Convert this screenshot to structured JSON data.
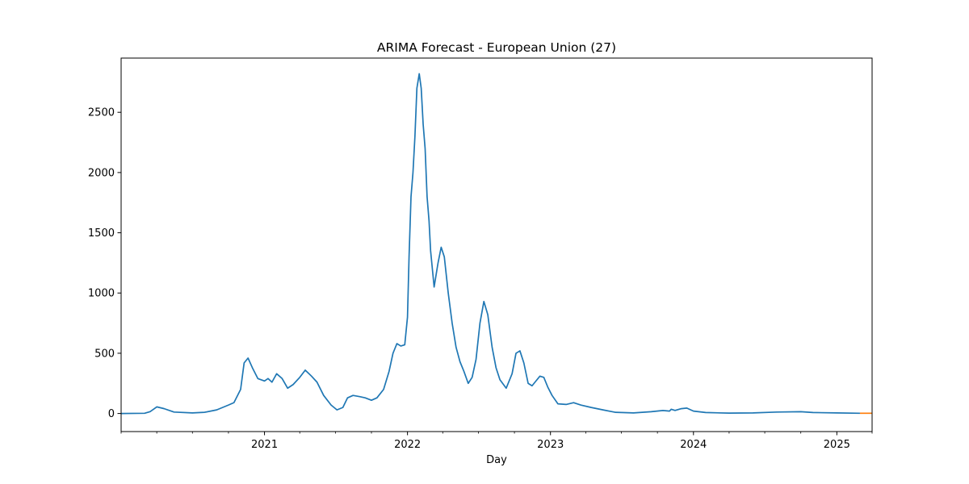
{
  "chart_data": {
    "type": "line",
    "title": "ARIMA Forecast - European Union (27)",
    "xlabel": "Day",
    "ylabel": "",
    "xlim": [
      "2020-01-01",
      "2025-04-01"
    ],
    "ylim": [
      -150,
      2950
    ],
    "grid": false,
    "legend": "none",
    "x_ticks": [
      {
        "date": "2021-01-01",
        "label": "2021"
      },
      {
        "date": "2022-01-01",
        "label": "2022"
      },
      {
        "date": "2023-01-01",
        "label": "2023"
      },
      {
        "date": "2024-01-01",
        "label": "2024"
      },
      {
        "date": "2025-01-01",
        "label": "2025"
      }
    ],
    "y_ticks": [
      {
        "value": 0,
        "label": "0"
      },
      {
        "value": 500,
        "label": "500"
      },
      {
        "value": 1000,
        "label": "1000"
      },
      {
        "value": 1500,
        "label": "1500"
      },
      {
        "value": 2000,
        "label": "2000"
      },
      {
        "value": 2500,
        "label": "2500"
      }
    ],
    "series": [
      {
        "color": "#1f77b4",
        "points": [
          [
            "2020-01-01",
            0
          ],
          [
            "2020-03-01",
            2
          ],
          [
            "2020-03-15",
            15
          ],
          [
            "2020-04-01",
            55
          ],
          [
            "2020-04-20",
            40
          ],
          [
            "2020-05-15",
            12
          ],
          [
            "2020-07-01",
            5
          ],
          [
            "2020-08-01",
            10
          ],
          [
            "2020-09-01",
            30
          ],
          [
            "2020-10-01",
            70
          ],
          [
            "2020-10-15",
            90
          ],
          [
            "2020-11-01",
            200
          ],
          [
            "2020-11-10",
            420
          ],
          [
            "2020-11-20",
            460
          ],
          [
            "2020-12-01",
            380
          ],
          [
            "2020-12-15",
            290
          ],
          [
            "2021-01-01",
            270
          ],
          [
            "2021-01-10",
            290
          ],
          [
            "2021-01-20",
            260
          ],
          [
            "2021-02-01",
            330
          ],
          [
            "2021-02-15",
            290
          ],
          [
            "2021-03-01",
            210
          ],
          [
            "2021-03-15",
            240
          ],
          [
            "2021-04-01",
            300
          ],
          [
            "2021-04-15",
            360
          ],
          [
            "2021-05-01",
            310
          ],
          [
            "2021-05-15",
            260
          ],
          [
            "2021-06-01",
            150
          ],
          [
            "2021-06-20",
            70
          ],
          [
            "2021-07-05",
            30
          ],
          [
            "2021-07-20",
            50
          ],
          [
            "2021-08-01",
            130
          ],
          [
            "2021-08-15",
            150
          ],
          [
            "2021-09-01",
            140
          ],
          [
            "2021-09-15",
            130
          ],
          [
            "2021-10-01",
            110
          ],
          [
            "2021-10-15",
            130
          ],
          [
            "2021-11-01",
            200
          ],
          [
            "2021-11-15",
            350
          ],
          [
            "2021-11-25",
            500
          ],
          [
            "2021-12-05",
            580
          ],
          [
            "2021-12-15",
            560
          ],
          [
            "2021-12-25",
            570
          ],
          [
            "2022-01-01",
            800
          ],
          [
            "2022-01-05",
            1300
          ],
          [
            "2022-01-10",
            1800
          ],
          [
            "2022-01-15",
            2000
          ],
          [
            "2022-01-20",
            2300
          ],
          [
            "2022-01-25",
            2700
          ],
          [
            "2022-01-31",
            2820
          ],
          [
            "2022-02-05",
            2700
          ],
          [
            "2022-02-10",
            2400
          ],
          [
            "2022-02-15",
            2200
          ],
          [
            "2022-02-20",
            1800
          ],
          [
            "2022-02-25",
            1600
          ],
          [
            "2022-03-01",
            1350
          ],
          [
            "2022-03-10",
            1050
          ],
          [
            "2022-03-20",
            1250
          ],
          [
            "2022-03-28",
            1380
          ],
          [
            "2022-04-05",
            1300
          ],
          [
            "2022-04-15",
            1000
          ],
          [
            "2022-04-25",
            750
          ],
          [
            "2022-05-05",
            550
          ],
          [
            "2022-05-15",
            430
          ],
          [
            "2022-05-25",
            350
          ],
          [
            "2022-06-05",
            250
          ],
          [
            "2022-06-15",
            300
          ],
          [
            "2022-06-25",
            450
          ],
          [
            "2022-07-05",
            750
          ],
          [
            "2022-07-15",
            930
          ],
          [
            "2022-07-25",
            820
          ],
          [
            "2022-08-05",
            550
          ],
          [
            "2022-08-15",
            380
          ],
          [
            "2022-08-25",
            280
          ],
          [
            "2022-09-10",
            210
          ],
          [
            "2022-09-25",
            330
          ],
          [
            "2022-10-05",
            500
          ],
          [
            "2022-10-15",
            520
          ],
          [
            "2022-10-25",
            420
          ],
          [
            "2022-11-05",
            250
          ],
          [
            "2022-11-15",
            230
          ],
          [
            "2022-11-25",
            270
          ],
          [
            "2022-12-05",
            310
          ],
          [
            "2022-12-15",
            300
          ],
          [
            "2022-12-25",
            220
          ],
          [
            "2023-01-05",
            150
          ],
          [
            "2023-01-20",
            80
          ],
          [
            "2023-02-10",
            75
          ],
          [
            "2023-03-01",
            90
          ],
          [
            "2023-03-20",
            70
          ],
          [
            "2023-04-15",
            50
          ],
          [
            "2023-05-15",
            30
          ],
          [
            "2023-06-15",
            10
          ],
          [
            "2023-08-01",
            5
          ],
          [
            "2023-09-15",
            15
          ],
          [
            "2023-10-15",
            25
          ],
          [
            "2023-11-01",
            20
          ],
          [
            "2023-11-05",
            35
          ],
          [
            "2023-11-15",
            25
          ],
          [
            "2023-12-01",
            40
          ],
          [
            "2023-12-15",
            45
          ],
          [
            "2024-01-01",
            20
          ],
          [
            "2024-02-01",
            8
          ],
          [
            "2024-04-01",
            3
          ],
          [
            "2024-06-01",
            5
          ],
          [
            "2024-08-01",
            12
          ],
          [
            "2024-10-01",
            15
          ],
          [
            "2024-11-01",
            8
          ],
          [
            "2025-01-01",
            5
          ],
          [
            "2025-03-01",
            2
          ]
        ]
      },
      {
        "color": "#ff7f0e",
        "points": [
          [
            "2025-03-01",
            2
          ],
          [
            "2025-04-01",
            2
          ]
        ]
      }
    ]
  }
}
